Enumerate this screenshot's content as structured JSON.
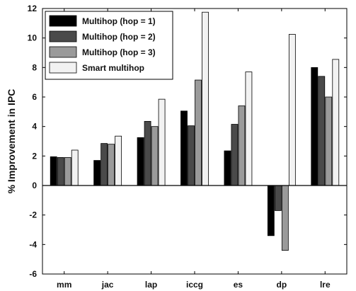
{
  "chart_data": {
    "type": "bar",
    "title": "",
    "xlabel": "",
    "ylabel": "% Improvement in IPC",
    "ylim": [
      -6,
      12
    ],
    "yticks": [
      -6,
      -4,
      -2,
      0,
      2,
      4,
      6,
      8,
      10,
      12
    ],
    "categories": [
      "mm",
      "jac",
      "lap",
      "iccg",
      "es",
      "dp",
      "lre"
    ],
    "series": [
      {
        "name": "Multihop (hop = 1)",
        "color": "#000000",
        "values": [
          1.95,
          1.7,
          3.25,
          5.05,
          2.35,
          -3.4,
          8.0
        ]
      },
      {
        "name": "Multihop (hop = 2)",
        "color": "#4a4a4a",
        "values": [
          1.9,
          2.85,
          4.35,
          4.05,
          4.15,
          -1.7,
          7.4
        ]
      },
      {
        "name": "Multihop (hop = 3)",
        "color": "#9a9a9a",
        "values": [
          1.9,
          2.8,
          4.0,
          7.15,
          5.4,
          -4.4,
          6.0
        ]
      },
      {
        "name": "Smart multihop",
        "color": "#f2f2f2",
        "values": [
          2.4,
          3.35,
          5.85,
          11.75,
          7.7,
          10.25,
          8.55
        ]
      }
    ],
    "legend_position": "top-left",
    "grid": false
  }
}
